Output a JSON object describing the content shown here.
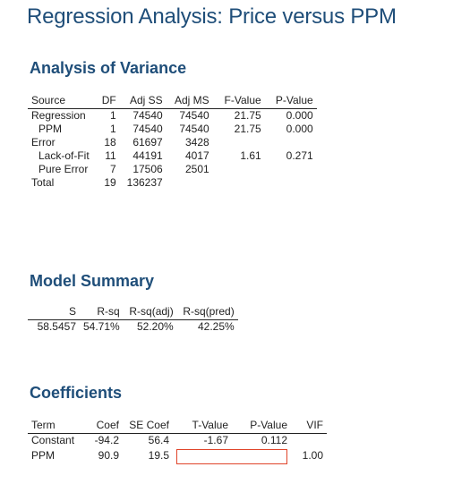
{
  "title": "Regression Analysis: Price versus PPM",
  "anova": {
    "heading": "Analysis of Variance",
    "columns": [
      "Source",
      "DF",
      "Adj SS",
      "Adj MS",
      "F-Value",
      "P-Value"
    ],
    "rows": [
      {
        "source": "Regression",
        "df": "1",
        "adj_ss": "74540",
        "adj_ms": "74540",
        "f": "21.75",
        "p": "0.000"
      },
      {
        "source": "PPM",
        "df": "1",
        "adj_ss": "74540",
        "adj_ms": "74540",
        "f": "21.75",
        "p": "0.000"
      },
      {
        "source": "Error",
        "df": "18",
        "adj_ss": "61697",
        "adj_ms": "3428",
        "f": "",
        "p": ""
      },
      {
        "source": "Lack-of-Fit",
        "df": "11",
        "adj_ss": "44191",
        "adj_ms": "4017",
        "f": "1.61",
        "p": "0.271"
      },
      {
        "source": "Pure Error",
        "df": "7",
        "adj_ss": "17506",
        "adj_ms": "2501",
        "f": "",
        "p": ""
      },
      {
        "source": "Total",
        "df": "19",
        "adj_ss": "136237",
        "adj_ms": "",
        "f": "",
        "p": ""
      }
    ]
  },
  "model_summary": {
    "heading": "Model Summary",
    "columns": [
      "S",
      "R-sq",
      "R-sq(adj)",
      "R-sq(pred)"
    ],
    "values": [
      "58.5457",
      "54.71%",
      "52.20%",
      "42.25%"
    ]
  },
  "coefficients": {
    "heading": "Coefficients",
    "columns": [
      "Term",
      "Coef",
      "SE Coef",
      "T-Value",
      "P-Value",
      "VIF"
    ],
    "rows": [
      {
        "term": "Constant",
        "coef": "-94.2",
        "se_coef": "56.4",
        "t": "-1.67",
        "p": "0.112",
        "vif": ""
      },
      {
        "term": "PPM",
        "coef": "90.9",
        "se_coef": "19.5",
        "t": "",
        "p": "",
        "vif": "1.00"
      }
    ],
    "highlight_color": "#e0442a"
  }
}
